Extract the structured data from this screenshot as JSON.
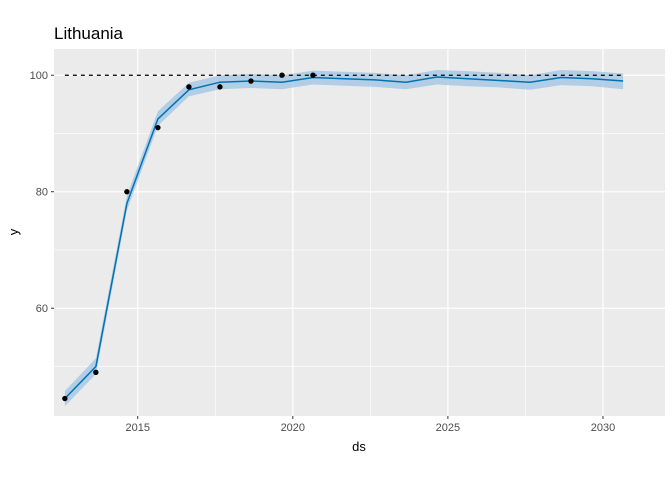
{
  "chart_data": {
    "type": "line",
    "title": "Lithuania",
    "xlabel": "ds",
    "ylabel": "y",
    "xlim": [
      2012.3,
      2032.0
    ],
    "ylim": [
      41.5,
      104.5
    ],
    "xticks": [
      2015,
      2020,
      2025,
      2030
    ],
    "yticks": [
      60,
      80,
      100
    ],
    "x_minor": [
      2017.5,
      2022.5,
      2027.5
    ],
    "y_minor": [
      50,
      70,
      90
    ],
    "grid": true,
    "legend": "none",
    "colors": {
      "panel": "#ebebeb",
      "grid": "#ffffff",
      "forecast_line": "#0072b2",
      "interval": "#9ec4e4",
      "points": "#000000",
      "cap": "#000000"
    },
    "cap": 100,
    "observed": {
      "x": [
        2012.65,
        2013.65,
        2014.65,
        2015.65,
        2016.65,
        2017.65,
        2018.65,
        2019.65,
        2020.65
      ],
      "y": [
        44.5,
        49,
        80,
        91,
        98,
        98,
        99,
        100,
        100
      ]
    },
    "forecast": {
      "x": [
        2012.65,
        2013.65,
        2014.65,
        2015.65,
        2016.65,
        2017.65,
        2018.65,
        2019.65,
        2020.65,
        2021.65,
        2022.65,
        2023.65,
        2024.65,
        2025.65,
        2026.65,
        2027.65,
        2028.65,
        2029.65,
        2030.65
      ],
      "y": [
        44.5,
        50,
        78,
        92.5,
        97.5,
        98.8,
        99,
        98.8,
        99.6,
        99.4,
        99.2,
        98.8,
        99.7,
        99.4,
        99.1,
        98.8,
        99.6,
        99.4,
        99.0
      ],
      "lower": [
        43.2,
        48.7,
        76.8,
        91.3,
        96.4,
        97.6,
        97.8,
        97.6,
        98.4,
        98.2,
        98.0,
        97.6,
        98.4,
        98.1,
        97.9,
        97.5,
        98.3,
        98.1,
        97.6
      ],
      "upper": [
        45.8,
        51.4,
        79.3,
        93.8,
        98.7,
        100.0,
        100.2,
        100.0,
        100.8,
        100.6,
        100.4,
        100.0,
        100.9,
        100.7,
        100.4,
        100.0,
        100.9,
        100.7,
        100.3
      ]
    }
  }
}
